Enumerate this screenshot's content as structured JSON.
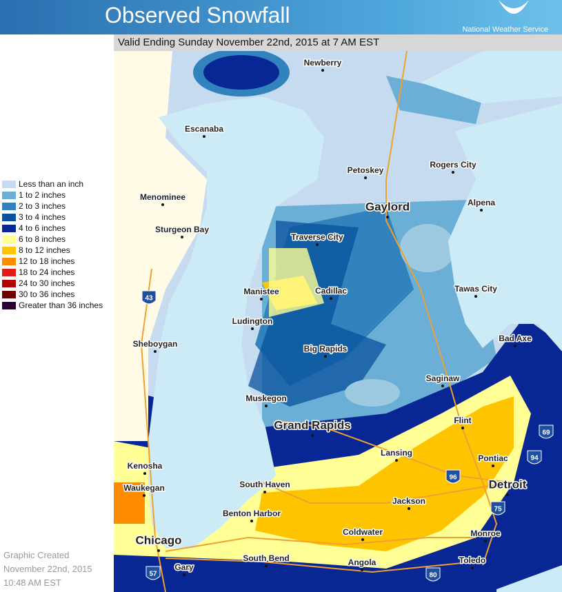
{
  "header": {
    "title": "Observed Snowfall",
    "agency": "National Weather Service",
    "subtitle": "Valid Ending Sunday November 22nd, 2015 at 7 AM EST"
  },
  "legend": [
    {
      "label": "Less than an inch",
      "color": "#c6dbef"
    },
    {
      "label": "1 to 2 inches",
      "color": "#6baed6"
    },
    {
      "label": "2 to 3 inches",
      "color": "#3182bd"
    },
    {
      "label": "3 to 4 inches",
      "color": "#08519c"
    },
    {
      "label": "4 to 6 inches",
      "color": "#082694"
    },
    {
      "label": "6 to 8 inches",
      "color": "#ffff96"
    },
    {
      "label": "8 to 12 inches",
      "color": "#ffc400"
    },
    {
      "label": "12 to 18 inches",
      "color": "#fe8c00"
    },
    {
      "label": "18 to 24 inches",
      "color": "#e31a1c"
    },
    {
      "label": "24 to 30 inches",
      "color": "#b00000"
    },
    {
      "label": "30 to 36 inches",
      "color": "#6e0000"
    },
    {
      "label": "Greater than 36 inches",
      "color": "#2a0030"
    }
  ],
  "cities": [
    "Newberry",
    "Escanaba",
    "Menominee",
    "Sturgeon Bay",
    "Petoskey",
    "Rogers City",
    "Gaylord",
    "Alpena",
    "Traverse City",
    "Manistee",
    "Cadillac",
    "Tawas City",
    "Ludington",
    "Sheboygan",
    "Big Rapids",
    "Bad Axe",
    "Saginaw",
    "Muskegon",
    "Grand Rapids",
    "Flint",
    "Lansing",
    "Pontiac",
    "Kenosha",
    "Detroit",
    "Waukegan",
    "South Haven",
    "Jackson",
    "Benton Harbor",
    "Chicago",
    "Coldwater",
    "Monroe",
    "South Bend",
    "Angola",
    "Toledo",
    "Gary"
  ],
  "interstates": [
    "43",
    "57",
    "96",
    "75",
    "94",
    "69",
    "80"
  ],
  "footer": [
    "Graphic Created",
    "November 22nd, 2015",
    "10:48 AM EST"
  ]
}
